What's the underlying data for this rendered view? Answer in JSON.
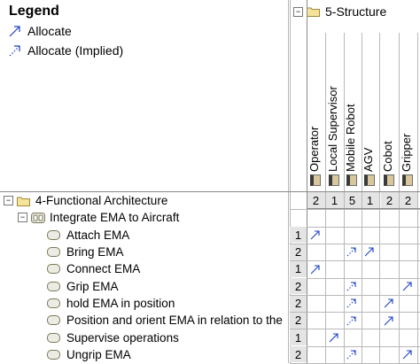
{
  "legend": {
    "title": "Legend",
    "items": [
      {
        "label": "Allocate",
        "style": "solid"
      },
      {
        "label": "Allocate (Implied)",
        "style": "dotted"
      }
    ]
  },
  "structure": {
    "label": "5-Structure",
    "columns": [
      {
        "label": "Operator",
        "count": "2"
      },
      {
        "label": "Local Supervisor",
        "count": "1"
      },
      {
        "label": "Mobile Robot",
        "count": "5"
      },
      {
        "label": "AGV",
        "count": "1"
      },
      {
        "label": "Cobot",
        "count": "2"
      },
      {
        "label": "Gripper",
        "count": "2"
      }
    ]
  },
  "tree": {
    "root": {
      "label": "4-Functional Architecture"
    },
    "group": {
      "label": "Integrate EMA to Aircraft"
    },
    "rows": [
      {
        "label": "Attach EMA",
        "count": "1",
        "cells": [
          "solid",
          "",
          "",
          "",
          "",
          ""
        ]
      },
      {
        "label": "Bring EMA",
        "count": "2",
        "cells": [
          "",
          "",
          "dotted",
          "solid",
          "",
          ""
        ]
      },
      {
        "label": "Connect EMA",
        "count": "1",
        "cells": [
          "solid",
          "",
          "",
          "",
          "",
          ""
        ]
      },
      {
        "label": "Grip EMA",
        "count": "2",
        "cells": [
          "",
          "",
          "dotted",
          "",
          "",
          "solid"
        ]
      },
      {
        "label": "hold EMA in position",
        "count": "2",
        "cells": [
          "",
          "",
          "dotted",
          "",
          "solid",
          ""
        ]
      },
      {
        "label": "Position and orient EMA in relation to the",
        "count": "2",
        "cells": [
          "",
          "",
          "dotted",
          "",
          "solid",
          ""
        ]
      },
      {
        "label": "Supervise operations",
        "count": "1",
        "cells": [
          "",
          "solid",
          "",
          "",
          "",
          ""
        ]
      },
      {
        "label": "Ungrip EMA",
        "count": "2",
        "cells": [
          "",
          "",
          "dotted",
          "",
          "",
          "solid"
        ]
      }
    ]
  },
  "colors": {
    "arrow": "#1a3fc4",
    "grid": "#b8b8b8",
    "count_bg": "#e4e4e4"
  }
}
